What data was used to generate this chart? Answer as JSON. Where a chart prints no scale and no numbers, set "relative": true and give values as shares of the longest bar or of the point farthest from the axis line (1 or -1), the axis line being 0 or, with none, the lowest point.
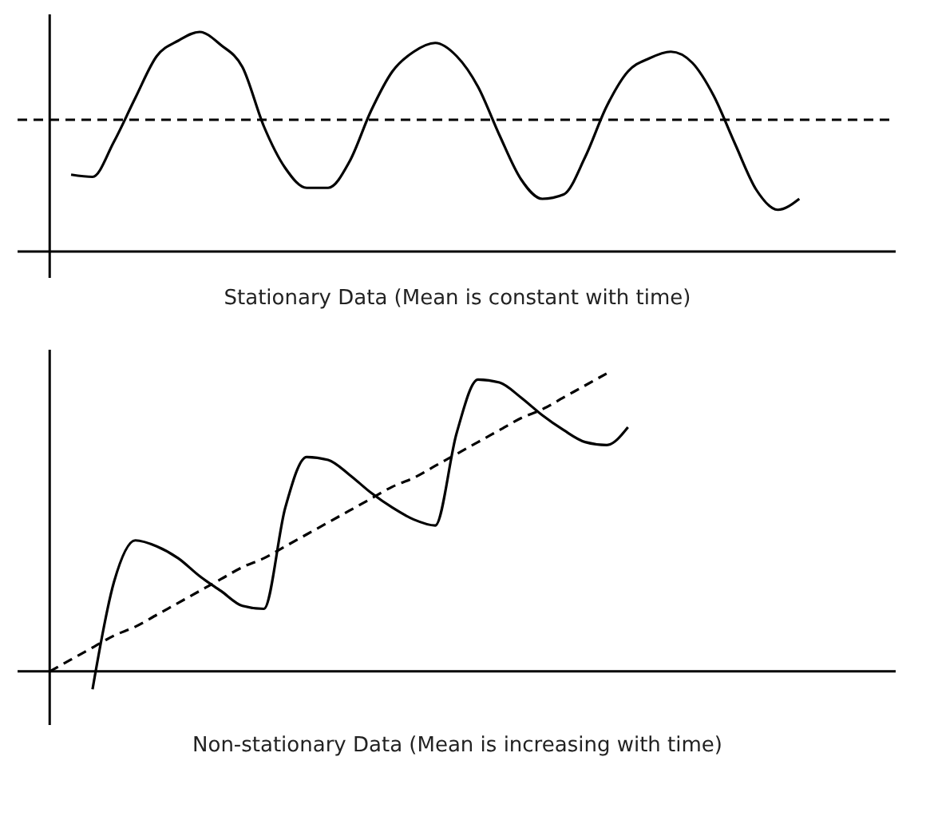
{
  "chart_data": [
    {
      "type": "line",
      "relative": true,
      "xlabel": "Stationary Data (Mean is constant with time)",
      "tick_labels": false,
      "grid": false,
      "line_style": "solid",
      "marker": "none",
      "categories": [
        null,
        null,
        null,
        null,
        null,
        null,
        null,
        null,
        null,
        null,
        null,
        null,
        null,
        null,
        null,
        null,
        null,
        null,
        null,
        null,
        null,
        null,
        null,
        null,
        null,
        null,
        null,
        null,
        null,
        null,
        null,
        null,
        null,
        null,
        null,
        null,
        null,
        null,
        null,
        null
      ],
      "series": [
        {
          "color": "#000000",
          "values": [
            null,
            0.35,
            0.34,
            0.5,
            0.7,
            0.89,
            0.96,
            1.0,
            0.94,
            0.84,
            0.57,
            0.38,
            0.29,
            0.29,
            0.41,
            0.64,
            0.82,
            0.91,
            0.95,
            0.89,
            0.75,
            0.53,
            0.33,
            0.24,
            0.26,
            0.43,
            0.66,
            0.82,
            0.88,
            0.91,
            0.86,
            0.71,
            0.49,
            0.28,
            0.19,
            0.24,
            null,
            null,
            null,
            null
          ]
        }
      ],
      "ref_lines": [
        {
          "axis": "y",
          "value": 0.6,
          "line_style": "dashed",
          "color": "#000000"
        }
      ]
    },
    {
      "type": "line",
      "relative": true,
      "xlabel": "Non-stationary Data (Mean is increasing with time)",
      "tick_labels": false,
      "grid": false,
      "line_style": "solid",
      "marker": "none",
      "categories": [
        null,
        null,
        null,
        null,
        null,
        null,
        null,
        null,
        null,
        null,
        null,
        null,
        null,
        null,
        null,
        null,
        null,
        null,
        null,
        null,
        null,
        null,
        null,
        null,
        null,
        null,
        null,
        null,
        null,
        null,
        null,
        null,
        null,
        null,
        null,
        null,
        null,
        null,
        null,
        null
      ],
      "series": [
        {
          "color": "#000000",
          "values": [
            null,
            null,
            -0.06,
            0.3,
            0.44,
            0.42,
            0.38,
            0.32,
            0.27,
            0.22,
            0.21,
            0.55,
            0.72,
            0.71,
            0.66,
            0.6,
            0.55,
            0.51,
            0.49,
            0.8,
            0.98,
            0.97,
            0.92,
            0.86,
            0.81,
            0.77,
            0.76,
            0.82,
            null,
            null,
            null,
            null,
            null,
            null,
            null,
            null,
            null,
            null,
            null,
            null
          ]
        },
        {
          "color": "#000000",
          "line_style": "dashed",
          "values": [
            0.0,
            0.04,
            0.08,
            0.12,
            0.15,
            0.19,
            0.23,
            0.27,
            0.31,
            0.35,
            0.38,
            0.42,
            0.46,
            0.5,
            0.54,
            0.58,
            0.62,
            0.65,
            0.69,
            0.73,
            0.77,
            0.81,
            0.85,
            0.88,
            0.92,
            0.96,
            1.0,
            null,
            null,
            null,
            null,
            null,
            null,
            null,
            null,
            null,
            null,
            null,
            null,
            null
          ]
        }
      ]
    }
  ]
}
